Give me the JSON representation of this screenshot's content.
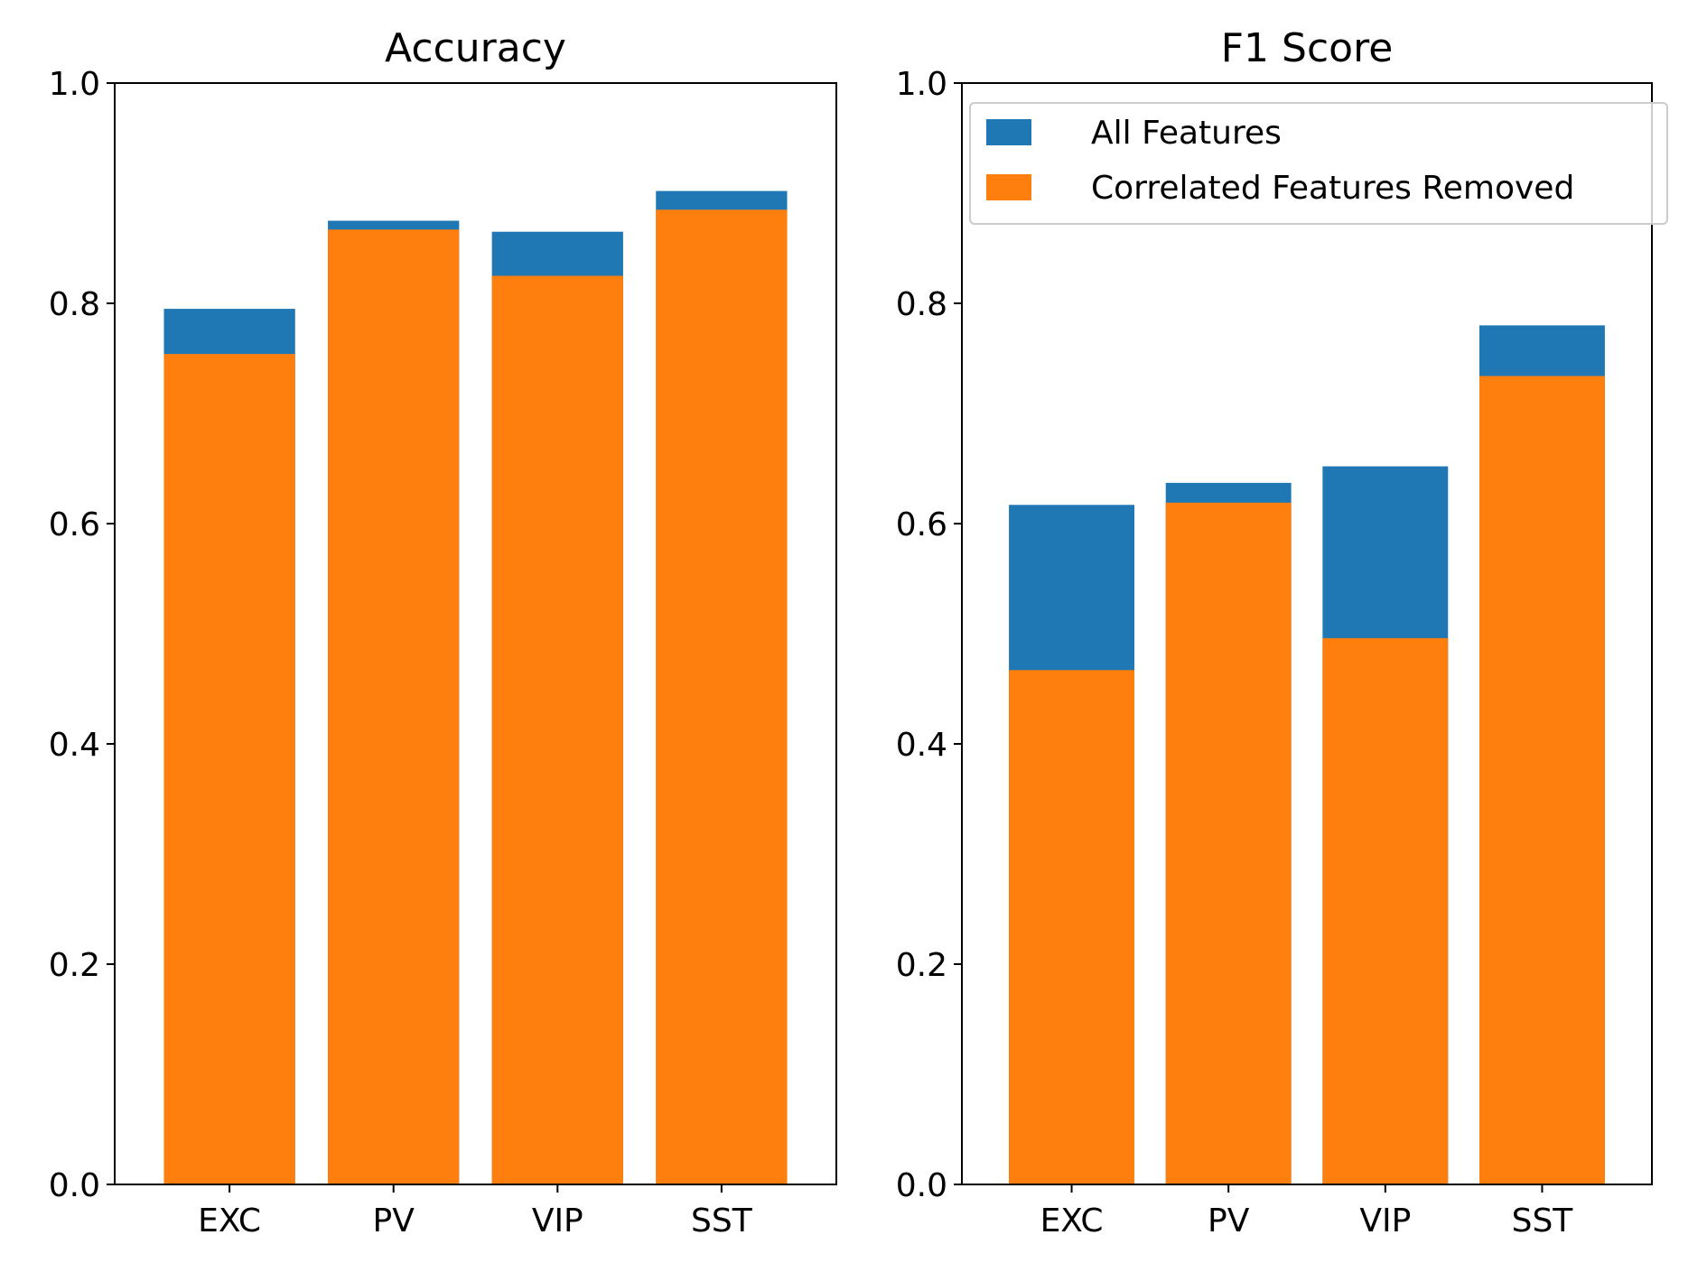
{
  "chart_data": [
    {
      "type": "bar",
      "title": "Accuracy",
      "xlabel": "",
      "ylabel": "",
      "categories": [
        "EXC",
        "PV",
        "VIP",
        "SST"
      ],
      "ylim": [
        0,
        1
      ],
      "yticks": [
        "0.0",
        "0.2",
        "0.4",
        "0.6",
        "0.8",
        "1.0"
      ],
      "grid": false,
      "series": [
        {
          "name": "All Features",
          "color": "#1f77b4",
          "values": [
            0.795,
            0.875,
            0.865,
            0.902
          ]
        },
        {
          "name": "Correlated Features Removed",
          "color": "#ff7f0e",
          "values": [
            0.754,
            0.867,
            0.825,
            0.885
          ]
        }
      ]
    },
    {
      "type": "bar",
      "title": "F1 Score",
      "xlabel": "",
      "ylabel": "",
      "categories": [
        "EXC",
        "PV",
        "VIP",
        "SST"
      ],
      "ylim": [
        0,
        1
      ],
      "yticks": [
        "0.0",
        "0.2",
        "0.4",
        "0.6",
        "0.8",
        "1.0"
      ],
      "grid": false,
      "legend": "top-right",
      "series": [
        {
          "name": "All Features",
          "color": "#1f77b4",
          "values": [
            0.617,
            0.637,
            0.652,
            0.78
          ]
        },
        {
          "name": "Correlated Features Removed",
          "color": "#ff7f0e",
          "values": [
            0.467,
            0.619,
            0.496,
            0.734
          ]
        }
      ]
    }
  ]
}
